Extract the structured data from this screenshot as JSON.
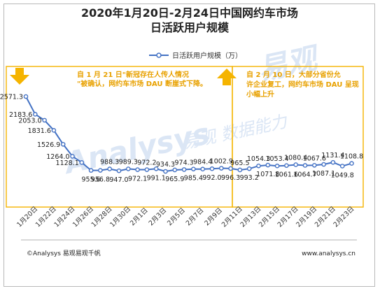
{
  "chart_data": {
    "type": "line",
    "title_line1": "2020年1月20日-2月24日中国网约车市场",
    "title_line2": "日活跃用户规模",
    "series": [
      {
        "name": "日活跃用户规模（万）",
        "color": "#4472c4",
        "values": [
          2571.3,
          2183.6,
          2053.0,
          1831.6,
          1526.9,
          1264.0,
          1128.1,
          955.6,
          956.8,
          988.3,
          947.0,
          989.3,
          972.1,
          972.2,
          991.1,
          934.3,
          965.9,
          974.3,
          985.4,
          984.4,
          992.0,
          1002.9,
          996.3,
          965.5,
          993.2,
          1054.3,
          1071.8,
          1053.4,
          1061.6,
          1080.4,
          1064.7,
          1067.6,
          1087.1,
          1131.4,
          1049.8,
          1108.8
        ],
        "labels": [
          "2571.3",
          "2183.6",
          "2053.0",
          "1831.6",
          "1526.9",
          "1264.0",
          "1128.1",
          "955.6",
          "956.8",
          "988.3",
          "947.0",
          "989.3",
          "972.1",
          "972.2",
          "991.1",
          "934.3",
          "965.9",
          "974.3",
          "985.4",
          "984.4",
          "992.0",
          "1002.9",
          "996.3",
          "965.5",
          "993.2",
          "1054.3",
          "1071.8",
          "1053.4",
          "1061.6",
          "1080.4",
          "1064.7",
          "1067.6",
          "1087.1",
          "1131.4",
          "1049.8",
          "1108.8"
        ]
      }
    ],
    "x_tick_labels": [
      "1月20日",
      "1月22日",
      "1月24日",
      "1月26日",
      "1月28日",
      "1月30日",
      "2月1日",
      "2月3日",
      "2月5日",
      "2月7日",
      "2月9日",
      "2月11日",
      "2月13日",
      "2月15日",
      "2月17日",
      "2月19日",
      "2月21日",
      "2月23日"
    ],
    "annotations": {
      "left": "自 1 月 21 日\"新冠存在人传人情况\"被确认，网约车市场 DAU 断崖式下降。",
      "right": "自 2 月 10 日，大部分省份允许企业复工，网约车市场 DAU 呈现小幅上升"
    },
    "colors": {
      "line": "#4472c4",
      "annotation": "#f5b400",
      "annotation_text": "#e8a100"
    },
    "grid": false,
    "legend_position": "top-center"
  },
  "watermark": {
    "brand": "Analysys",
    "tagline": "易观 数据能力",
    "chinese": "易观"
  },
  "footer": {
    "left": "©Analysys 易观易观千帆",
    "right": "www.analysys.cn"
  }
}
